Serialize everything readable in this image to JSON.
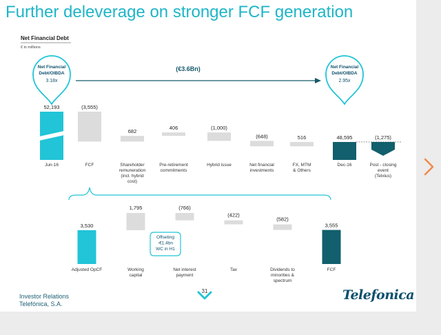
{
  "slide": {
    "title": "Further deleverage on stronger FCF generation",
    "page_number": "31",
    "footer_org": [
      "Investor Relations",
      "Telefónica, S.A."
    ],
    "logo_text": "Telefonica",
    "page_counter": "",
    "next_icon": "chevron-right-icon",
    "colors": {
      "title": "#1fb5c8",
      "teal": "#22c4d7",
      "dark": "#125f6d",
      "grey": "#dcdcdc",
      "brand": "#0d4f6c"
    }
  },
  "chart_data": [
    {
      "type": "bar",
      "subtype": "waterfall",
      "title": "Net Financial Debt",
      "subtitle": "€ in millions",
      "arrow_label": "(€3.6Bn)",
      "categories": [
        "Jun-16",
        "FCF",
        "Shareholder remuneration (incl. hybrid cost)",
        "Pre-retirement commitments",
        "Hybrid issue",
        "Net financial investments",
        "FX, MTM & Others",
        "Dec-16",
        "Post - closing event (Telxius)"
      ],
      "category_lines": [
        [
          "Jun-16"
        ],
        [
          "FCF"
        ],
        [
          "Shareholder",
          "remuneration",
          "(incl. hybrid",
          "cost)"
        ],
        [
          "Pre-retirement",
          "commitments"
        ],
        [
          "Hybrid issue"
        ],
        [
          "Net financial",
          "investments"
        ],
        [
          "FX, MTM",
          "& Others"
        ],
        [
          "Dec-16"
        ],
        [
          "Post - closing",
          "event",
          "(Telxius)"
        ]
      ],
      "values": [
        52193,
        -3555,
        682,
        406,
        -1000,
        -648,
        516,
        48595,
        -1275
      ],
      "value_labels": [
        "52,193",
        "(3,555)",
        "682",
        "406",
        "(1,000)",
        "(648)",
        "516",
        "48,595",
        "(1,275)"
      ],
      "kinds": [
        "total",
        "step",
        "step",
        "step",
        "step",
        "step",
        "step",
        "total",
        "post"
      ],
      "callouts": [
        {
          "lines": [
            "Net Financial",
            "Debt/OIBDA"
          ],
          "value": "3.18x"
        },
        {
          "lines": [
            "Net Financial",
            "Debt/OIBDA"
          ],
          "value": "2.95x"
        }
      ]
    },
    {
      "type": "bar",
      "subtype": "waterfall",
      "categories": [
        "Adjusted OpCF",
        "Working capital",
        "Net interest payment",
        "Tax",
        "Dividends to minorities & spectrum",
        "FCF"
      ],
      "category_lines": [
        [
          "Adjusted OpCF"
        ],
        [
          "Working",
          "capital"
        ],
        [
          "Net interest",
          "payment"
        ],
        [
          "Tax"
        ],
        [
          "Dividends to",
          "minorities &",
          "spectrum"
        ],
        [
          "FCF"
        ]
      ],
      "values": [
        3530,
        1795,
        -766,
        -422,
        -582,
        3555
      ],
      "value_labels": [
        "3,530",
        "1,795",
        "(766)",
        "(422)",
        "(582)",
        "3,555"
      ],
      "kinds": [
        "total",
        "step",
        "step",
        "step",
        "step",
        "total"
      ],
      "note": [
        "Offseting",
        "-€1.4bn",
        "WC in H1"
      ]
    }
  ]
}
